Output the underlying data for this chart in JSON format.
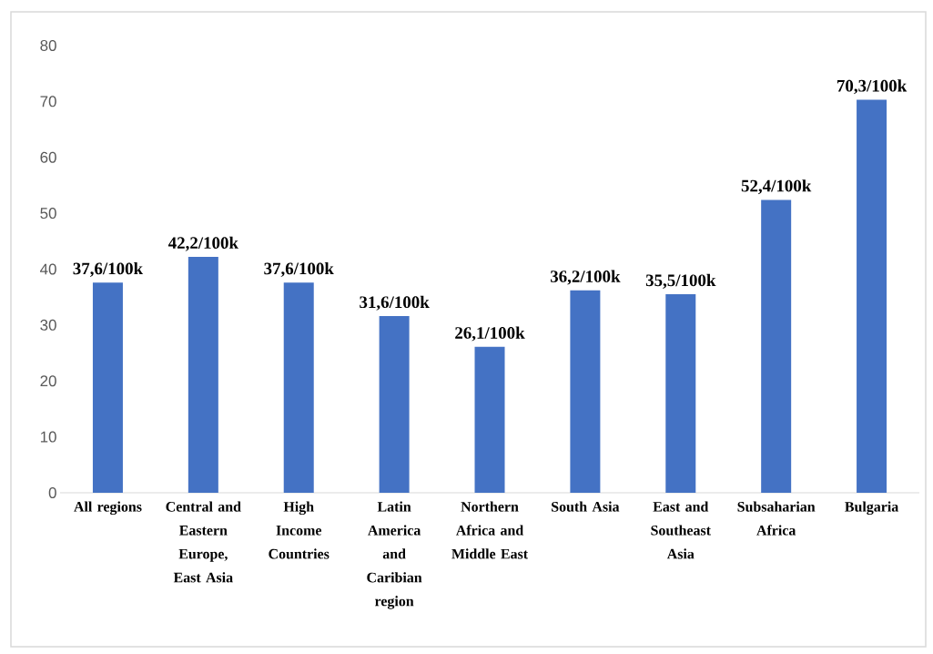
{
  "chart_data": {
    "type": "bar",
    "categories": [
      "All regions",
      "Central and Eastern Europe, East Asia",
      "High Income Countries",
      "Latin America and Caribian region",
      "Northern Africa and Middle East",
      "South Asia",
      "East and Southeast Asia",
      "Subsaharian Africa",
      "Bulgaria"
    ],
    "values": [
      37.6,
      42.2,
      37.6,
      31.6,
      26.1,
      36.2,
      35.5,
      52.4,
      70.3
    ],
    "value_labels": [
      "37,6/100k",
      "42,2/100k",
      "37,6/100k",
      "31,6/100k",
      "26,1/100k",
      "36,2/100k",
      "35,5/100k",
      "52,4/100k",
      "70,3/100k"
    ],
    "color": "#4472c4",
    "ylim": [
      0,
      80
    ],
    "yticks": [
      0,
      10,
      20,
      30,
      40,
      50,
      60,
      70,
      80
    ],
    "grid": false
  }
}
